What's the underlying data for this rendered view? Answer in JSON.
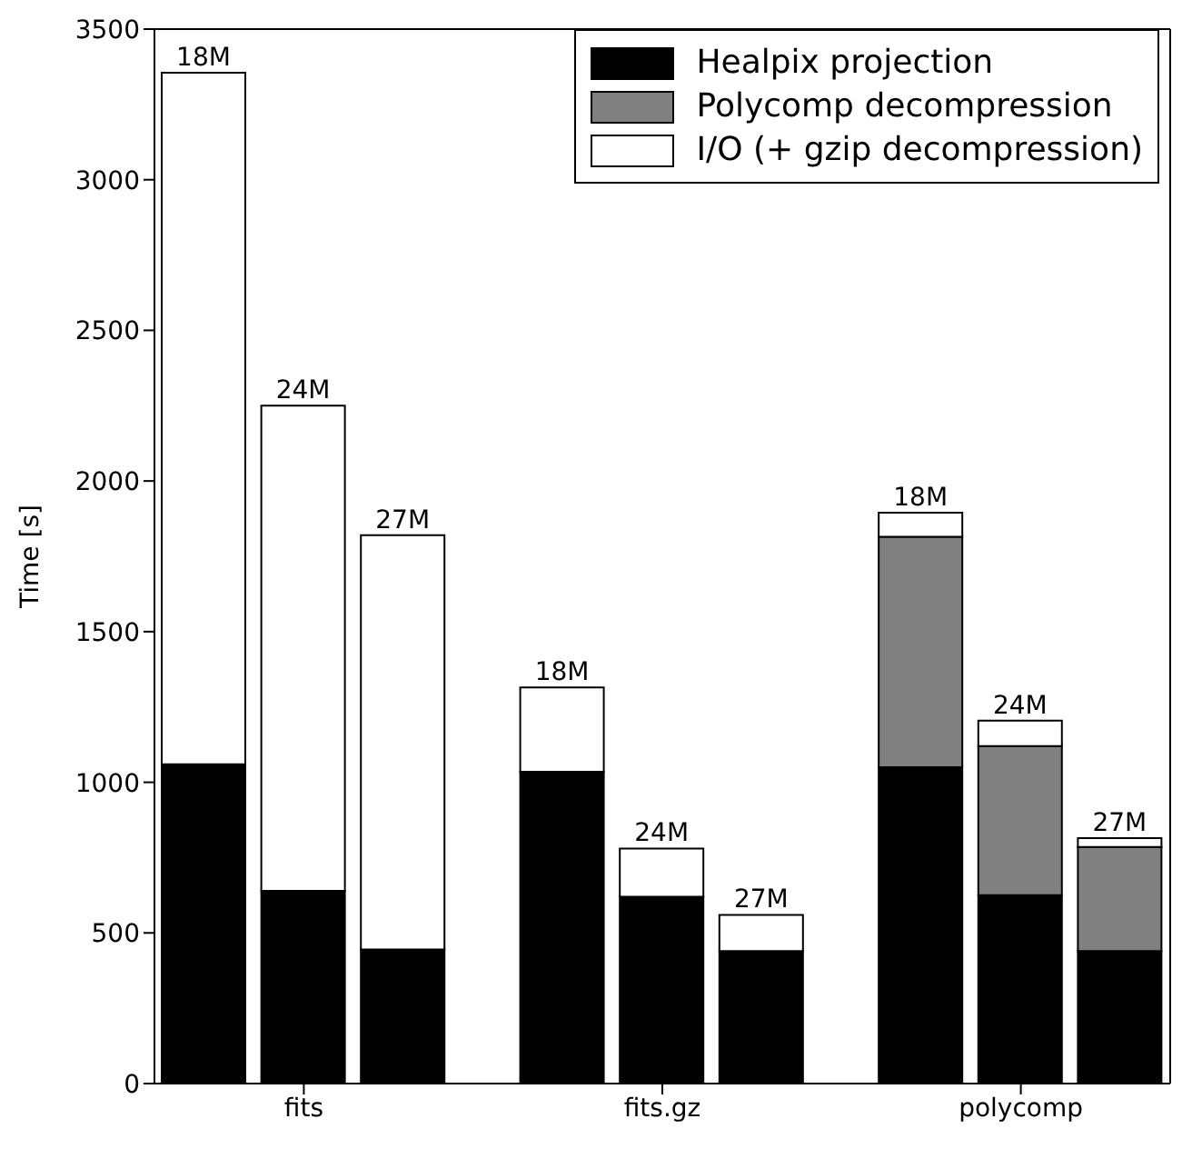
{
  "chart_data": {
    "type": "bar",
    "stacked": true,
    "ylabel": "Time [s]",
    "categories": [
      null,
      "fits",
      null,
      null,
      "fits.gz",
      null,
      null,
      "polycomp",
      null
    ],
    "series": [
      {
        "name": "Healpix projection",
        "color": "#000000",
        "values": [
          1060,
          640,
          445,
          1035,
          620,
          440,
          1050,
          625,
          440
        ]
      },
      {
        "name": "Polycomp decompression",
        "color": "#808080",
        "values": [
          0,
          0,
          0,
          0,
          0,
          0,
          765,
          495,
          345
        ]
      },
      {
        "name": "I/O (+ gzip decompression)",
        "color": "#ffffff",
        "values": [
          2295,
          1610,
          1375,
          280,
          160,
          120,
          80,
          85,
          30
        ]
      }
    ],
    "annotations": [
      {
        "text": "18M",
        "y": 3355
      },
      {
        "text": "24M",
        "y": 2250
      },
      {
        "text": "27M",
        "y": 1820
      },
      {
        "text": "18M",
        "y": 1315
      },
      {
        "text": "24M",
        "y": 780
      },
      {
        "text": "27M",
        "y": 560
      },
      {
        "text": "18M",
        "y": 1895
      },
      {
        "text": "24M",
        "y": 1205
      },
      {
        "text": "27M",
        "y": 815
      }
    ],
    "ylim": [
      0,
      3500
    ],
    "yticks": [
      0,
      500,
      1000,
      1500,
      2000,
      2500,
      3000,
      3500
    ],
    "legend": "top right"
  }
}
